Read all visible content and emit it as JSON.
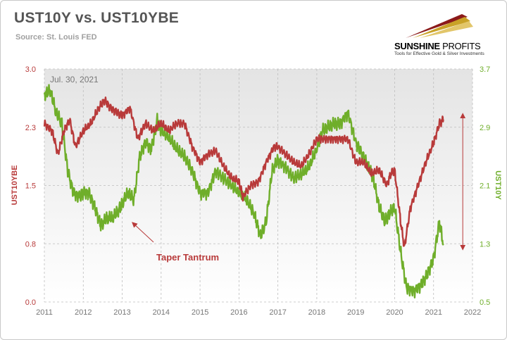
{
  "header": {
    "title": "UST10Y vs. UST10YBE",
    "source": "Source: St. Louis FED"
  },
  "logo": {
    "name_bold": "SUNSHINE",
    "name_thin": "PROFITS",
    "tagline": "Tools for Effective Gold & Silver Investments"
  },
  "colors": {
    "breakeven": "#b83a3a",
    "yield10y": "#6fae2a",
    "grid": "#bdbdbd",
    "axis_text": "#777777",
    "annotation": "#b83a3a"
  },
  "chart_data": {
    "type": "line",
    "title": "UST10Y vs. UST10YBE",
    "date_label": "Jul. 30, 2021",
    "x_ticks": [
      "2011",
      "2012",
      "2013",
      "2014",
      "2015",
      "2016",
      "2017",
      "2018",
      "2019",
      "2020",
      "2021",
      "2022"
    ],
    "xlim": [
      2011,
      2022
    ],
    "left_axis": {
      "label": "UST10YBE",
      "ylim": [
        0.0,
        3.0
      ],
      "ticks": [
        "0.0",
        "0.8",
        "1.5",
        "2.3",
        "3.0"
      ]
    },
    "right_axis": {
      "label": "UST10Y",
      "ylim": [
        0.5,
        3.7
      ],
      "ticks": [
        "0.5",
        "1.3",
        "2.1",
        "2.9",
        "3.7"
      ]
    },
    "series": [
      {
        "name": "UST10YBE",
        "axis": "left",
        "color": "#b83a3a",
        "x": [
          2011.0,
          2011.2,
          2011.35,
          2011.5,
          2011.65,
          2011.8,
          2012.0,
          2012.2,
          2012.4,
          2012.55,
          2012.7,
          2012.85,
          2013.0,
          2013.2,
          2013.4,
          2013.6,
          2013.8,
          2014.0,
          2014.2,
          2014.4,
          2014.6,
          2014.8,
          2015.0,
          2015.2,
          2015.4,
          2015.6,
          2015.8,
          2016.0,
          2016.1,
          2016.3,
          2016.5,
          2016.7,
          2016.9,
          2017.0,
          2017.2,
          2017.4,
          2017.6,
          2017.8,
          2018.0,
          2018.2,
          2018.4,
          2018.6,
          2018.8,
          2019.0,
          2019.2,
          2019.4,
          2019.6,
          2019.8,
          2019.9,
          2020.0,
          2020.15,
          2020.25,
          2020.4,
          2020.6,
          2020.8,
          2021.0,
          2021.15,
          2021.25
        ],
        "values": [
          2.3,
          2.2,
          1.9,
          2.2,
          2.35,
          2.0,
          2.2,
          2.3,
          2.5,
          2.6,
          2.5,
          2.45,
          2.4,
          2.5,
          2.1,
          2.3,
          2.2,
          2.3,
          2.2,
          2.3,
          2.3,
          2.0,
          1.8,
          1.9,
          1.95,
          1.75,
          1.6,
          1.55,
          1.35,
          1.5,
          1.55,
          1.8,
          2.0,
          2.0,
          1.9,
          1.8,
          1.75,
          1.9,
          2.1,
          2.1,
          2.1,
          2.1,
          2.1,
          1.8,
          1.8,
          1.65,
          1.7,
          1.5,
          1.65,
          1.7,
          1.05,
          0.7,
          1.2,
          1.5,
          1.8,
          2.05,
          2.3,
          2.35
        ]
      },
      {
        "name": "UST10Y",
        "axis": "right",
        "color": "#6fae2a",
        "x": [
          2011.0,
          2011.15,
          2011.3,
          2011.45,
          2011.6,
          2011.75,
          2011.9,
          2012.0,
          2012.15,
          2012.3,
          2012.45,
          2012.6,
          2012.75,
          2012.9,
          2013.0,
          2013.15,
          2013.3,
          2013.45,
          2013.6,
          2013.75,
          2013.9,
          2014.0,
          2014.2,
          2014.4,
          2014.6,
          2014.8,
          2015.0,
          2015.2,
          2015.4,
          2015.6,
          2015.8,
          2016.0,
          2016.2,
          2016.4,
          2016.55,
          2016.7,
          2016.85,
          2017.0,
          2017.2,
          2017.4,
          2017.6,
          2017.8,
          2018.0,
          2018.15,
          2018.3,
          2018.45,
          2018.6,
          2018.8,
          2019.0,
          2019.15,
          2019.3,
          2019.45,
          2019.6,
          2019.75,
          2019.85,
          2020.0,
          2020.15,
          2020.3,
          2020.5,
          2020.7,
          2020.85,
          2021.0,
          2021.15,
          2021.25
        ],
        "values": [
          3.35,
          3.4,
          3.1,
          2.95,
          2.3,
          2.0,
          1.95,
          2.0,
          2.0,
          1.8,
          1.55,
          1.65,
          1.65,
          1.75,
          1.85,
          2.0,
          1.9,
          2.5,
          2.7,
          2.6,
          3.0,
          2.85,
          2.75,
          2.6,
          2.5,
          2.3,
          2.0,
          2.0,
          2.3,
          2.2,
          2.1,
          2.0,
          1.9,
          1.7,
          1.4,
          1.6,
          2.3,
          2.45,
          2.35,
          2.2,
          2.25,
          2.35,
          2.6,
          2.85,
          2.9,
          2.95,
          2.95,
          3.1,
          2.7,
          2.55,
          2.4,
          2.2,
          1.8,
          1.6,
          1.7,
          1.8,
          1.2,
          0.7,
          0.65,
          0.75,
          0.9,
          1.1,
          1.6,
          1.3
        ]
      }
    ],
    "annotation": {
      "text": "Taper Tantrum",
      "x": 2013.9,
      "y_left": 0.78
    },
    "spread_arrow": {
      "x": 2021.75,
      "from_left": 2.4,
      "to_left": 0.7
    }
  }
}
